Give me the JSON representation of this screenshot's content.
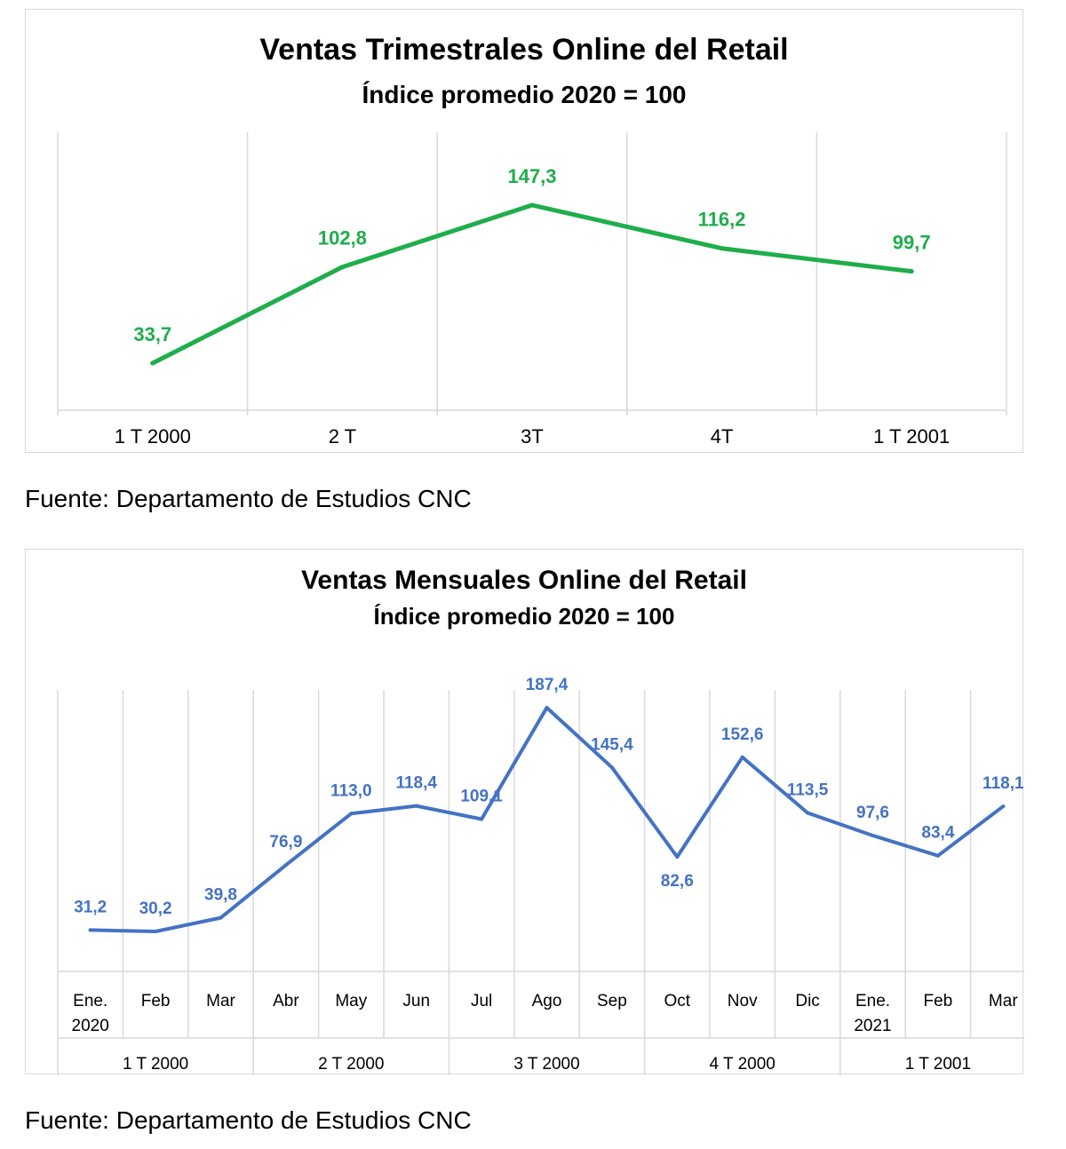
{
  "chart_data": [
    {
      "type": "line",
      "title": "Ventas Trimestrales Online del Retail",
      "subtitle": "Índice promedio 2020 = 100",
      "categories": [
        "1 T 2000",
        "2 T",
        "3T",
        "4T",
        "1 T 2001"
      ],
      "series": [
        {
          "values": [
            33.7,
            102.8,
            147.3,
            116.2,
            99.7
          ],
          "labels": [
            "33,7",
            "102,8",
            "147,3",
            "116,2",
            "99,7"
          ],
          "color": "#1fae4b"
        }
      ],
      "ylim": [
        0,
        200
      ],
      "grid": "vertical",
      "legend": "none",
      "source": "Fuente: Departamento de Estudios CNC"
    },
    {
      "type": "line",
      "title": "Ventas Mensuales Online del Retail",
      "subtitle": "Índice promedio 2020 = 100",
      "categories": [
        "Ene. 2020",
        "Feb",
        "Mar",
        "Abr",
        "May",
        "Jun",
        "Jul",
        "Ago",
        "Sep",
        "Oct",
        "Nov",
        "Dic",
        "Ene. 2021",
        "Feb",
        "Mar"
      ],
      "groups": [
        {
          "label": "1 T 2000",
          "span": 3
        },
        {
          "label": "2 T 2000",
          "span": 3
        },
        {
          "label": "3 T 2000",
          "span": 3
        },
        {
          "label": "4 T 2000",
          "span": 3
        },
        {
          "label": "1 T 2001",
          "span": 3
        }
      ],
      "series": [
        {
          "values": [
            31.2,
            30.2,
            39.8,
            76.9,
            113.0,
            118.4,
            109.1,
            187.4,
            145.4,
            82.6,
            152.6,
            113.5,
            97.6,
            83.4,
            118.1
          ],
          "labels": [
            "31,2",
            "30,2",
            "39,8",
            "76,9",
            "113,0",
            "118,4",
            "109,1",
            "187,4",
            "145,4",
            "82,6",
            "152,6",
            "113,5",
            "97,6",
            "83,4",
            "118,1"
          ],
          "color": "#4472c4"
        }
      ],
      "ylim": [
        0,
        200
      ],
      "grid": "vertical",
      "legend": "none",
      "source": "Fuente: Departamento de Estudios CNC"
    }
  ]
}
